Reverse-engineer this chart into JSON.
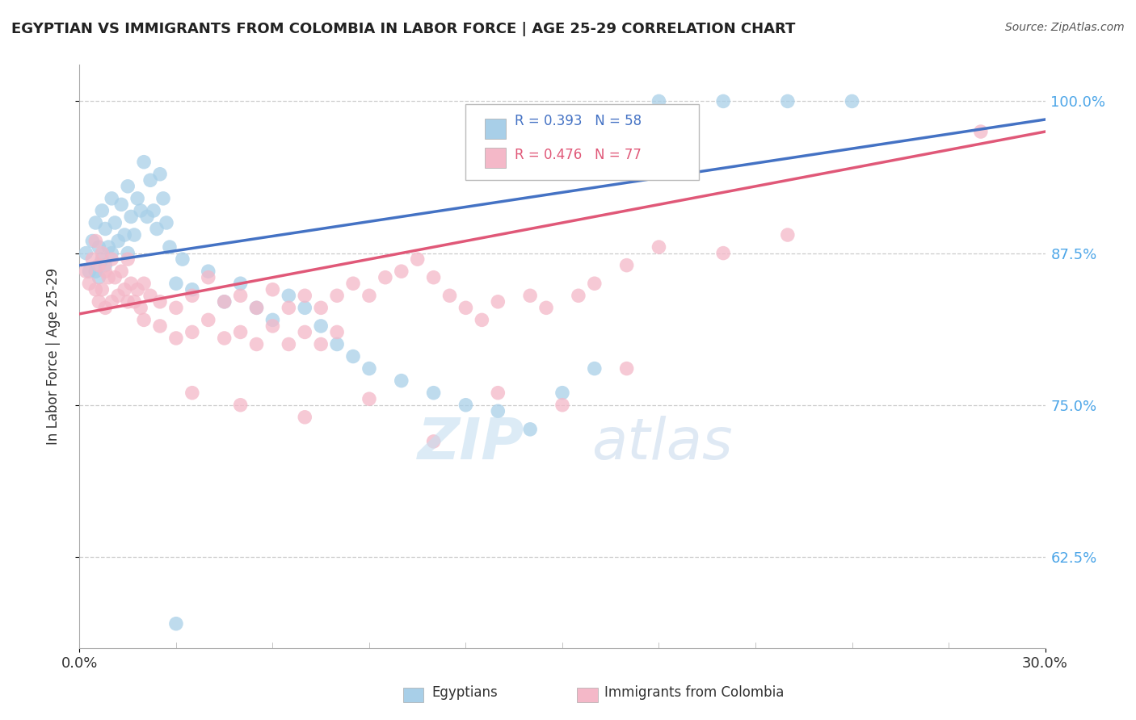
{
  "title": "EGYPTIAN VS IMMIGRANTS FROM COLOMBIA IN LABOR FORCE | AGE 25-29 CORRELATION CHART",
  "source": "Source: ZipAtlas.com",
  "ylabel": "In Labor Force | Age 25-29",
  "xlim": [
    0.0,
    30.0
  ],
  "ylim": [
    55.0,
    103.0
  ],
  "yticks": [
    62.5,
    75.0,
    87.5,
    100.0
  ],
  "ytick_labels": [
    "62.5%",
    "75.0%",
    "87.5%",
    "100.0%"
  ],
  "blue_color": "#a8cfe8",
  "pink_color": "#f4b8c8",
  "line_blue": "#4472c4",
  "line_pink": "#e05878",
  "background": "#ffffff",
  "title_color": "#222222",
  "source_color": "#555555",
  "blue_scatter": [
    [
      0.2,
      87.5
    ],
    [
      0.3,
      86.0
    ],
    [
      0.4,
      88.5
    ],
    [
      0.5,
      90.0
    ],
    [
      0.5,
      86.0
    ],
    [
      0.6,
      88.0
    ],
    [
      0.6,
      85.5
    ],
    [
      0.7,
      91.0
    ],
    [
      0.7,
      87.0
    ],
    [
      0.8,
      89.5
    ],
    [
      0.8,
      86.5
    ],
    [
      0.9,
      88.0
    ],
    [
      1.0,
      92.0
    ],
    [
      1.0,
      87.5
    ],
    [
      1.1,
      90.0
    ],
    [
      1.2,
      88.5
    ],
    [
      1.3,
      91.5
    ],
    [
      1.4,
      89.0
    ],
    [
      1.5,
      93.0
    ],
    [
      1.5,
      87.5
    ],
    [
      1.6,
      90.5
    ],
    [
      1.7,
      89.0
    ],
    [
      1.8,
      92.0
    ],
    [
      1.9,
      91.0
    ],
    [
      2.0,
      95.0
    ],
    [
      2.1,
      90.5
    ],
    [
      2.2,
      93.5
    ],
    [
      2.3,
      91.0
    ],
    [
      2.4,
      89.5
    ],
    [
      2.5,
      94.0
    ],
    [
      2.6,
      92.0
    ],
    [
      2.7,
      90.0
    ],
    [
      2.8,
      88.0
    ],
    [
      3.0,
      85.0
    ],
    [
      3.2,
      87.0
    ],
    [
      3.5,
      84.5
    ],
    [
      4.0,
      86.0
    ],
    [
      4.5,
      83.5
    ],
    [
      5.0,
      85.0
    ],
    [
      5.5,
      83.0
    ],
    [
      6.0,
      82.0
    ],
    [
      6.5,
      84.0
    ],
    [
      7.0,
      83.0
    ],
    [
      7.5,
      81.5
    ],
    [
      8.0,
      80.0
    ],
    [
      8.5,
      79.0
    ],
    [
      9.0,
      78.0
    ],
    [
      10.0,
      77.0
    ],
    [
      11.0,
      76.0
    ],
    [
      12.0,
      75.0
    ],
    [
      13.0,
      74.5
    ],
    [
      14.0,
      73.0
    ],
    [
      15.0,
      76.0
    ],
    [
      16.0,
      78.0
    ],
    [
      3.0,
      57.0
    ],
    [
      18.0,
      100.0
    ],
    [
      20.0,
      100.0
    ],
    [
      22.0,
      100.0
    ],
    [
      24.0,
      100.0
    ]
  ],
  "pink_scatter": [
    [
      0.2,
      86.0
    ],
    [
      0.3,
      85.0
    ],
    [
      0.4,
      87.0
    ],
    [
      0.5,
      88.5
    ],
    [
      0.5,
      84.5
    ],
    [
      0.6,
      86.5
    ],
    [
      0.6,
      83.5
    ],
    [
      0.7,
      87.5
    ],
    [
      0.7,
      84.5
    ],
    [
      0.8,
      86.0
    ],
    [
      0.8,
      83.0
    ],
    [
      0.9,
      85.5
    ],
    [
      1.0,
      87.0
    ],
    [
      1.0,
      83.5
    ],
    [
      1.1,
      85.5
    ],
    [
      1.2,
      84.0
    ],
    [
      1.3,
      86.0
    ],
    [
      1.4,
      84.5
    ],
    [
      1.5,
      87.0
    ],
    [
      1.5,
      83.5
    ],
    [
      1.6,
      85.0
    ],
    [
      1.7,
      83.5
    ],
    [
      1.8,
      84.5
    ],
    [
      1.9,
      83.0
    ],
    [
      2.0,
      85.0
    ],
    [
      2.0,
      82.0
    ],
    [
      2.2,
      84.0
    ],
    [
      2.5,
      83.5
    ],
    [
      2.5,
      81.5
    ],
    [
      3.0,
      83.0
    ],
    [
      3.0,
      80.5
    ],
    [
      3.5,
      84.0
    ],
    [
      3.5,
      81.0
    ],
    [
      4.0,
      85.5
    ],
    [
      4.0,
      82.0
    ],
    [
      4.5,
      83.5
    ],
    [
      4.5,
      80.5
    ],
    [
      5.0,
      84.0
    ],
    [
      5.0,
      81.0
    ],
    [
      5.5,
      83.0
    ],
    [
      5.5,
      80.0
    ],
    [
      6.0,
      84.5
    ],
    [
      6.0,
      81.5
    ],
    [
      6.5,
      83.0
    ],
    [
      6.5,
      80.0
    ],
    [
      7.0,
      84.0
    ],
    [
      7.0,
      81.0
    ],
    [
      7.5,
      83.0
    ],
    [
      7.5,
      80.0
    ],
    [
      8.0,
      84.0
    ],
    [
      8.0,
      81.0
    ],
    [
      8.5,
      85.0
    ],
    [
      9.0,
      84.0
    ],
    [
      9.5,
      85.5
    ],
    [
      10.0,
      86.0
    ],
    [
      10.5,
      87.0
    ],
    [
      11.0,
      85.5
    ],
    [
      11.5,
      84.0
    ],
    [
      12.0,
      83.0
    ],
    [
      12.5,
      82.0
    ],
    [
      13.0,
      83.5
    ],
    [
      14.0,
      84.0
    ],
    [
      14.5,
      83.0
    ],
    [
      15.5,
      84.0
    ],
    [
      16.0,
      85.0
    ],
    [
      17.0,
      86.5
    ],
    [
      18.0,
      88.0
    ],
    [
      20.0,
      87.5
    ],
    [
      22.0,
      89.0
    ],
    [
      3.5,
      76.0
    ],
    [
      5.0,
      75.0
    ],
    [
      7.0,
      74.0
    ],
    [
      9.0,
      75.5
    ],
    [
      11.0,
      72.0
    ],
    [
      13.0,
      76.0
    ],
    [
      15.0,
      75.0
    ],
    [
      17.0,
      78.0
    ],
    [
      28.0,
      97.5
    ]
  ],
  "blue_line_x": [
    0.0,
    30.0
  ],
  "blue_line_y": [
    86.5,
    98.5
  ],
  "pink_line_x": [
    0.0,
    30.0
  ],
  "pink_line_y": [
    82.5,
    97.5
  ]
}
